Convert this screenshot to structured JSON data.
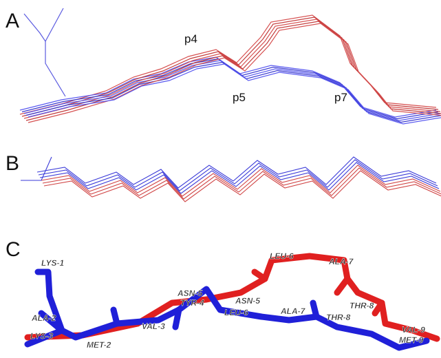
{
  "panels": [
    {
      "label": "A",
      "annotations": [
        "p4",
        "p5",
        "p7"
      ]
    },
    {
      "label": "B"
    },
    {
      "label": "C",
      "residues": [
        "LYS-1",
        "ALA-2",
        "LYS-3",
        "MET-2",
        "VAL-3",
        "ASN-5",
        "TYR-4",
        "ASN-5",
        "LEU-6",
        "ALA-7",
        "THR-8",
        "LEU-6",
        "ALA-7",
        "THR-8",
        "VAL-9",
        "MET-9"
      ]
    }
  ]
}
